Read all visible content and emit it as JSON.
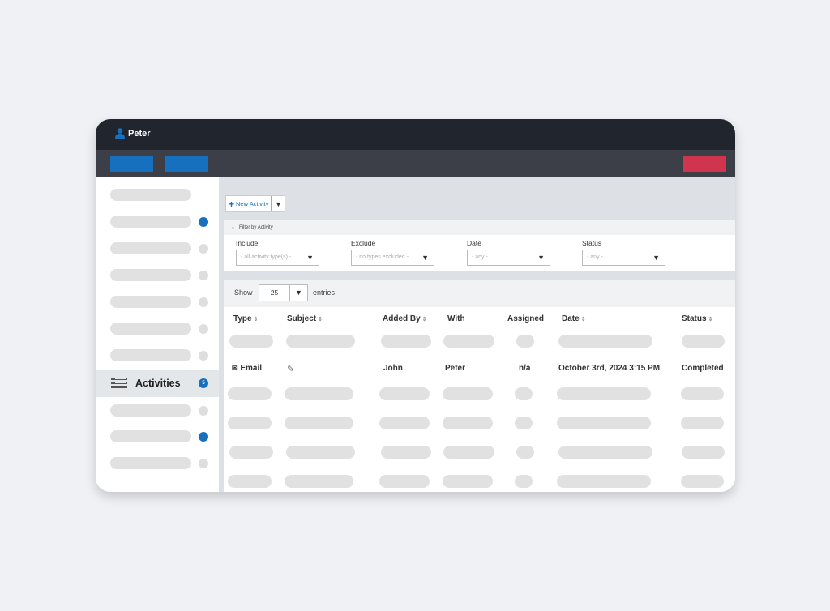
{
  "header": {
    "user_name": "Peter"
  },
  "sidebar": {
    "active_item": {
      "label": "Activities",
      "badge": "5"
    }
  },
  "toolbar": {
    "new_activity_label": "New Activity"
  },
  "filter": {
    "heading": "Filter by Activity",
    "include": {
      "label": "Include",
      "placeholder": "- all activity type(s) -"
    },
    "exclude": {
      "label": "Exclude",
      "placeholder": "- no types excluded -"
    },
    "date": {
      "label": "Date",
      "placeholder": "- any -"
    },
    "status": {
      "label": "Status",
      "placeholder": "- any -"
    }
  },
  "table_controls": {
    "show_label": "Show",
    "page_size": "25",
    "entries_label": "entries"
  },
  "table": {
    "columns": [
      "Type",
      "Subject",
      "Added By",
      "With",
      "Assigned",
      "Date",
      "Status"
    ],
    "row": {
      "type": "Email",
      "added_by": "John",
      "with": "Peter",
      "assigned": "n/a",
      "date": "October 3rd, 2024 3:15 PM",
      "status": "Completed"
    }
  },
  "colors": {
    "topbar": "#21252d",
    "toolbar": "#3c3f48",
    "primary": "#1670be",
    "danger": "#d0344f"
  }
}
